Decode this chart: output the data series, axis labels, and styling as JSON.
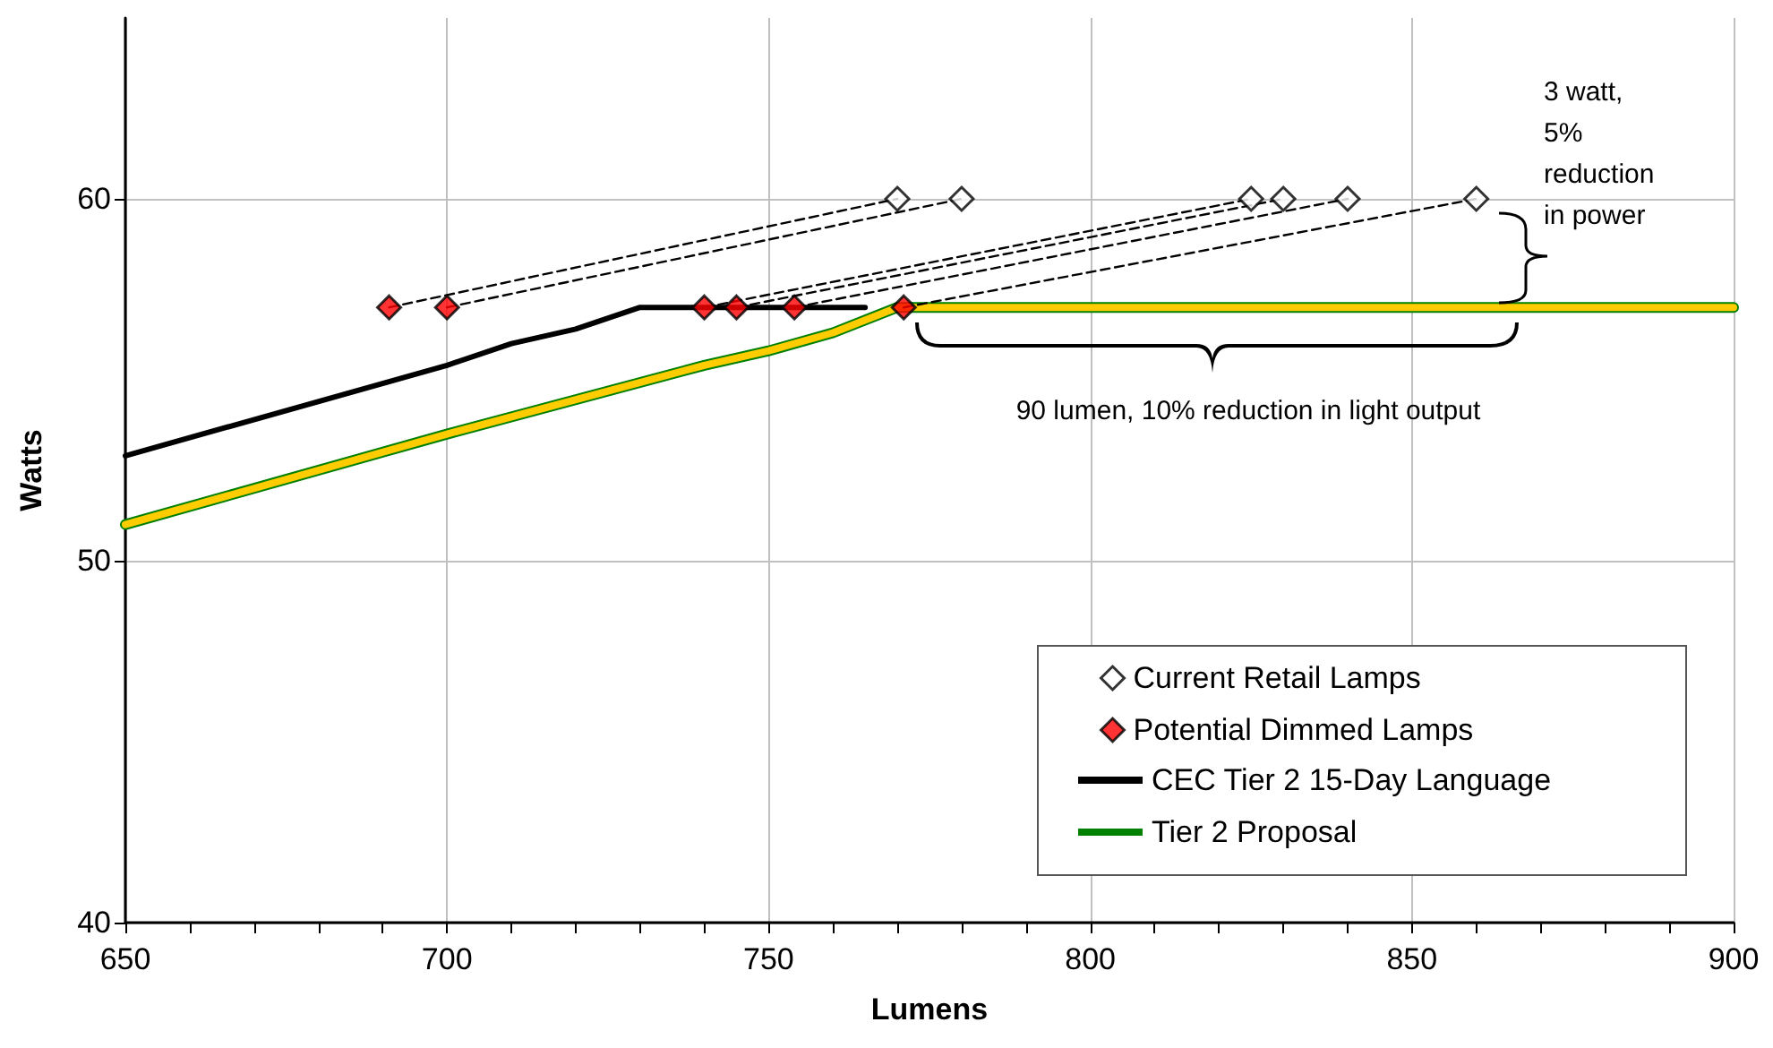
{
  "chart_data": {
    "type": "line",
    "xlabel": "Lumens",
    "ylabel": "Watts",
    "xlim": [
      650,
      900
    ],
    "ylim": [
      40,
      65
    ],
    "xticks": [
      650,
      {
        "value": 660,
        "label": null
      },
      {
        "value": 670,
        "label": null
      },
      {
        "value": 680,
        "label": null
      },
      {
        "value": 690,
        "label": null
      },
      700,
      {
        "value": 710,
        "label": null
      },
      {
        "value": 720,
        "label": null
      },
      {
        "value": 730,
        "label": null
      },
      {
        "value": 740,
        "label": null
      },
      750,
      {
        "value": 760,
        "label": null
      },
      {
        "value": 770,
        "label": null
      },
      {
        "value": 780,
        "label": null
      },
      {
        "value": 790,
        "label": null
      },
      800,
      {
        "value": 810,
        "label": null
      },
      {
        "value": 820,
        "label": null
      },
      {
        "value": 830,
        "label": null
      },
      {
        "value": 840,
        "label": null
      },
      850,
      {
        "value": 860,
        "label": null
      },
      {
        "value": 870,
        "label": null
      },
      {
        "value": 880,
        "label": null
      },
      {
        "value": 890,
        "label": null
      },
      900
    ],
    "yticks": [
      40,
      50,
      60
    ],
    "grid": true,
    "legend": "bottom right",
    "series": [
      {
        "name": "Current Retail Lamps",
        "type": "scatter",
        "marker": "diamond",
        "color": "#ffffff",
        "x": [
          770,
          780,
          825,
          830,
          840,
          860
        ],
        "values": [
          60,
          60,
          60,
          60,
          60,
          60
        ]
      },
      {
        "name": "Potential Dimmed Lamps",
        "type": "scatter",
        "marker": "diamond",
        "color": "#ff0000",
        "x": [
          691,
          700,
          740,
          745,
          754,
          771
        ],
        "values": [
          57,
          57,
          57,
          57,
          57,
          57
        ]
      },
      {
        "name": "CEC Tier 2 15-Day Language",
        "marker": "none",
        "line_style": "solid",
        "color": "#000000",
        "x": [
          650,
          700,
          710,
          720,
          730,
          765
        ],
        "values": [
          52.9,
          55.4,
          56,
          56.4,
          57,
          57
        ]
      },
      {
        "name": "Tier 2 Proposal",
        "marker": "none",
        "line_style": "solid",
        "color": "#008000",
        "x": [
          650,
          700,
          740,
          750,
          760,
          770,
          900
        ],
        "values": [
          51,
          53.5,
          55.4,
          55.8,
          56.3,
          57,
          57
        ]
      },
      {
        "type": "line",
        "marker": "none",
        "line_style": "solid",
        "color": "#ffcc00",
        "x": [
          650,
          700,
          740,
          750,
          760,
          770,
          900
        ],
        "values": [
          51,
          53.5,
          55.4,
          55.8,
          56.3,
          57,
          57
        ]
      },
      {
        "type": "line",
        "marker": "none",
        "line_style": "dashed",
        "color": "#000000",
        "x": [
          691,
          770
        ],
        "values": [
          57,
          60
        ]
      },
      {
        "type": "line",
        "marker": "none",
        "line_style": "dashed",
        "color": "#000000",
        "x": [
          700,
          780
        ],
        "values": [
          57,
          60
        ]
      },
      {
        "type": "line",
        "marker": "none",
        "line_style": "dashed",
        "color": "#000000",
        "x": [
          740,
          825
        ],
        "values": [
          57,
          60
        ]
      },
      {
        "type": "line",
        "marker": "none",
        "line_style": "dashed",
        "color": "#000000",
        "x": [
          745,
          830
        ],
        "values": [
          57,
          60
        ]
      },
      {
        "type": "line",
        "marker": "none",
        "line_style": "dashed",
        "color": "#000000",
        "x": [
          754,
          840
        ],
        "values": [
          57,
          60
        ]
      },
      {
        "type": "line",
        "marker": "none",
        "line_style": "dashed",
        "color": "#000000",
        "x": [
          771,
          860
        ],
        "values": [
          57,
          60
        ]
      }
    ],
    "annotations": [
      "3 watt, 5% reduction in power",
      "90 lumen, 10% reduction in light output"
    ]
  }
}
